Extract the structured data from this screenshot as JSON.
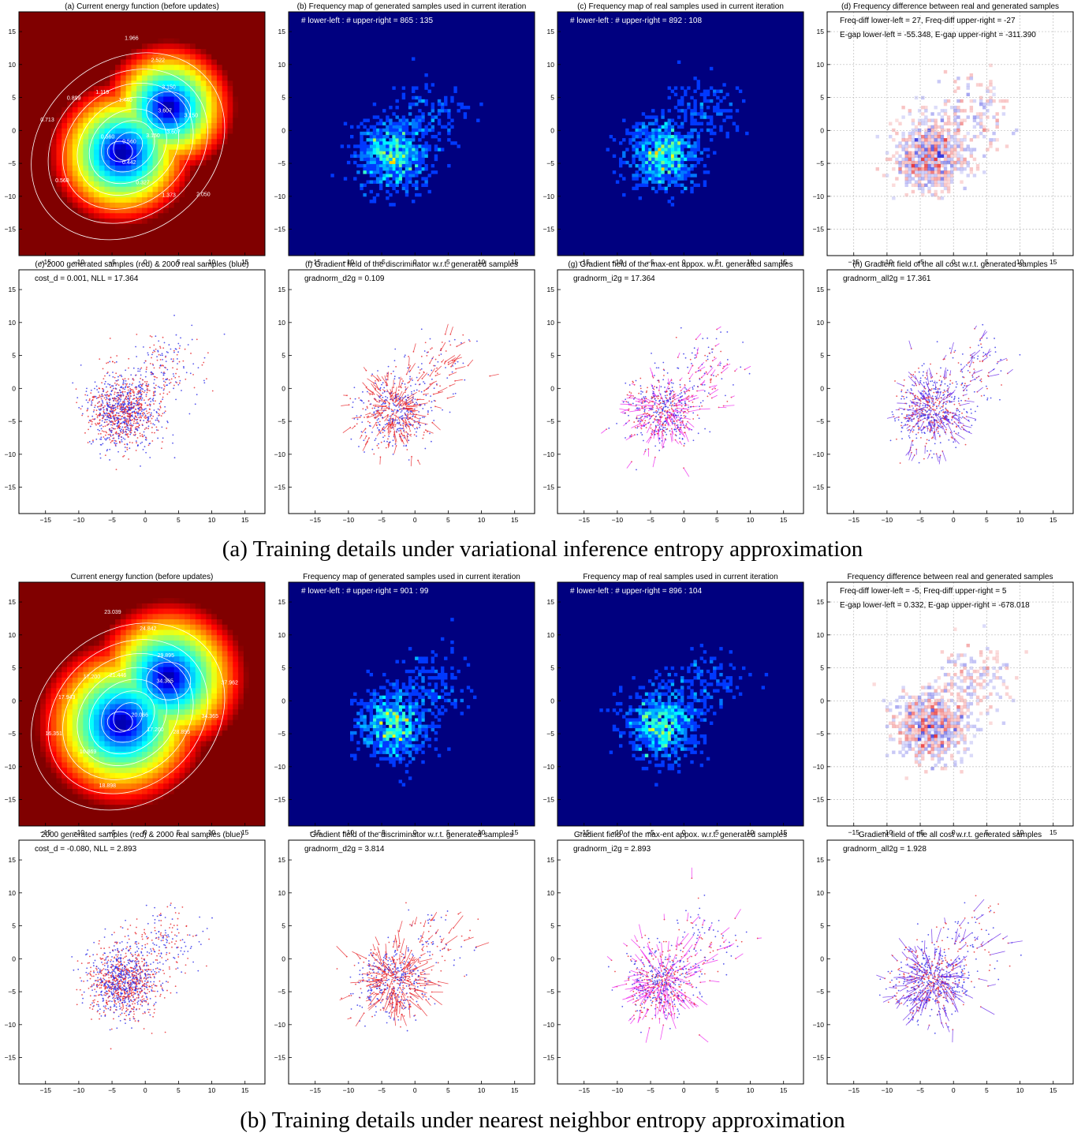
{
  "captions": {
    "a": "(a) Training details under variational inference entropy approximation",
    "b": "(b) Training details under nearest neighbor entropy approximation"
  },
  "colors": {
    "generated": "#e8262b",
    "real": "#2b2be8",
    "max_ent_arrows": "#ee22ee",
    "all_cost_arrows": "#6a2bea",
    "heatmap_bg": "#00007f",
    "contour": "#ffffff",
    "grid": "#bbbbbb"
  },
  "chart_data": [
    {
      "type": "heatmap",
      "group": "a",
      "title": "(a) Current energy function (before updates)",
      "xlim": [
        -19,
        18
      ],
      "ylim": [
        -19,
        18
      ],
      "xticks": [
        -15,
        -10,
        -5,
        0,
        5,
        10,
        15
      ],
      "yticks": [
        -15,
        -10,
        -5,
        0,
        5,
        10,
        15
      ],
      "contour_labels": [
        "3.607",
        "3.150",
        "2.522",
        "1.966",
        "1.440",
        "1.119",
        "0.899",
        "0.713",
        "0.560",
        "0.560",
        "0.560",
        "0.442",
        "0.327",
        "1.373",
        "2.050",
        "3.150",
        "3.607",
        "3.150"
      ]
    },
    {
      "type": "heatmap",
      "group": "a",
      "title": "(b) Frequency map of generated samples used in current iteration",
      "xlim": [
        -19,
        18
      ],
      "ylim": [
        -19,
        18
      ],
      "xticks": [
        -15,
        -10,
        -5,
        0,
        5,
        10,
        15
      ],
      "yticks": [
        -15,
        -10,
        -5,
        0,
        5,
        10,
        15
      ],
      "annotation": "# lower-left : # upper-right = 865 : 135",
      "counts": {
        "lower_left": 865,
        "upper_right": 135
      }
    },
    {
      "type": "heatmap",
      "group": "a",
      "title": "(c) Frequency map of real samples used in current iteration",
      "xlim": [
        -19,
        18
      ],
      "ylim": [
        -19,
        18
      ],
      "xticks": [
        -15,
        -10,
        -5,
        0,
        5,
        10,
        15
      ],
      "yticks": [
        -15,
        -10,
        -5,
        0,
        5,
        10,
        15
      ],
      "annotation": "# lower-left : # upper-right = 892 : 108",
      "counts": {
        "lower_left": 892,
        "upper_right": 108
      }
    },
    {
      "type": "heatmap",
      "group": "a",
      "title": "(d) Frequency difference between real and generated samples",
      "xlim": [
        -19,
        18
      ],
      "ylim": [
        -19,
        18
      ],
      "xticks": [
        -15,
        -10,
        -5,
        0,
        5,
        10,
        15
      ],
      "yticks": [
        -15,
        -10,
        -5,
        0,
        5,
        10,
        15
      ],
      "grid": true,
      "annotation_lines": [
        "Freq-diff lower-left = 27, Freq-diff upper-right = -27",
        "E-gap lower-left = -55.348, E-gap upper-right = -311.390"
      ]
    },
    {
      "type": "scatter",
      "group": "a",
      "title": "(e) 2000 generated samples (red) & 2000 real samples (blue)",
      "xlim": [
        -19,
        18
      ],
      "ylim": [
        -19,
        18
      ],
      "xticks": [
        -15,
        -10,
        -5,
        0,
        5,
        10,
        15
      ],
      "yticks": [
        -15,
        -10,
        -5,
        0,
        5,
        10,
        15
      ],
      "annotation": "cost_d = 0.001, NLL = 17.364",
      "series": [
        {
          "name": "generated",
          "count": 2000
        },
        {
          "name": "real",
          "count": 2000
        }
      ]
    },
    {
      "type": "scatter",
      "group": "a",
      "title": "(f) Gradient field of the discriminator w.r.t. generated samples",
      "xlim": [
        -19,
        18
      ],
      "ylim": [
        -19,
        18
      ],
      "xticks": [
        -15,
        -10,
        -5,
        0,
        5,
        10,
        15
      ],
      "yticks": [
        -15,
        -10,
        -5,
        0,
        5,
        10,
        15
      ],
      "annotation": "gradnorm_d2g = 0.109",
      "arrow_color": "generated"
    },
    {
      "type": "scatter",
      "group": "a",
      "title": "(g) Gradient field of the max-ent appox. w.r.t. generated samples",
      "xlim": [
        -19,
        18
      ],
      "ylim": [
        -19,
        18
      ],
      "xticks": [
        -15,
        -10,
        -5,
        0,
        5,
        10,
        15
      ],
      "yticks": [
        -15,
        -10,
        -5,
        0,
        5,
        10,
        15
      ],
      "annotation": "gradnorm_i2g = 17.364",
      "arrow_color": "max_ent_arrows"
    },
    {
      "type": "scatter",
      "group": "a",
      "title": "(h) Gradient field of the all cost w.r.t. generated samples",
      "xlim": [
        -19,
        18
      ],
      "ylim": [
        -19,
        18
      ],
      "xticks": [
        -15,
        -10,
        -5,
        0,
        5,
        10,
        15
      ],
      "yticks": [
        -15,
        -10,
        -5,
        0,
        5,
        10,
        15
      ],
      "annotation": "gradnorm_all2g = 17.361",
      "arrow_color": "all_cost_arrows"
    },
    {
      "type": "heatmap",
      "group": "b",
      "title": "Current energy function (before updates)",
      "xlim": [
        -19,
        18
      ],
      "ylim": [
        -19,
        18
      ],
      "xticks": [
        -15,
        -10,
        -5,
        0,
        5,
        10,
        15
      ],
      "yticks": [
        -15,
        -10,
        -5,
        0,
        5,
        10,
        15
      ],
      "contour_labels": [
        "34.365",
        "29.895",
        "24.842",
        "23.039",
        "21.446",
        "17.200",
        "17.943",
        "16.351",
        "16.869",
        "18.898",
        "20.066",
        "17.200",
        "28.895",
        "34.365",
        "37.962"
      ]
    },
    {
      "type": "heatmap",
      "group": "b",
      "title": "Frequency map of generated samples used in current iteration",
      "xlim": [
        -19,
        18
      ],
      "ylim": [
        -19,
        18
      ],
      "xticks": [
        -15,
        -10,
        -5,
        0,
        5,
        10,
        15
      ],
      "yticks": [
        -15,
        -10,
        -5,
        0,
        5,
        10,
        15
      ],
      "annotation": "# lower-left : # upper-right = 901 : 99",
      "counts": {
        "lower_left": 901,
        "upper_right": 99
      }
    },
    {
      "type": "heatmap",
      "group": "b",
      "title": "Frequency map of real samples used in current iteration",
      "xlim": [
        -19,
        18
      ],
      "ylim": [
        -19,
        18
      ],
      "xticks": [
        -15,
        -10,
        -5,
        0,
        5,
        10,
        15
      ],
      "yticks": [
        -15,
        -10,
        -5,
        0,
        5,
        10,
        15
      ],
      "annotation": "# lower-left : # upper-right = 896 : 104",
      "counts": {
        "lower_left": 896,
        "upper_right": 104
      }
    },
    {
      "type": "heatmap",
      "group": "b",
      "title": "Frequency difference between real and generated samples",
      "xlim": [
        -19,
        18
      ],
      "ylim": [
        -19,
        18
      ],
      "xticks": [
        -15,
        -10,
        -5,
        0,
        5,
        10,
        15
      ],
      "yticks": [
        -15,
        -10,
        -5,
        0,
        5,
        10,
        15
      ],
      "grid": true,
      "annotation_lines": [
        "Freq-diff lower-left = -5, Freq-diff upper-right = 5",
        "E-gap lower-left = 0.332, E-gap upper-right = -678.018"
      ]
    },
    {
      "type": "scatter",
      "group": "b",
      "title": "2000 generated samples (red) & 2000 real samples (blue)",
      "xlim": [
        -19,
        18
      ],
      "ylim": [
        -19,
        18
      ],
      "xticks": [
        -15,
        -10,
        -5,
        0,
        5,
        10,
        15
      ],
      "yticks": [
        -15,
        -10,
        -5,
        0,
        5,
        10,
        15
      ],
      "annotation": "cost_d = -0.080, NLL = 2.893",
      "series": [
        {
          "name": "generated",
          "count": 2000
        },
        {
          "name": "real",
          "count": 2000
        }
      ]
    },
    {
      "type": "scatter",
      "group": "b",
      "title": "Gradient field of the discriminator w.r.t. generated samples",
      "xlim": [
        -19,
        18
      ],
      "ylim": [
        -19,
        18
      ],
      "xticks": [
        -15,
        -10,
        -5,
        0,
        5,
        10,
        15
      ],
      "yticks": [
        -15,
        -10,
        -5,
        0,
        5,
        10,
        15
      ],
      "annotation": "gradnorm_d2g = 3.814",
      "arrow_color": "generated"
    },
    {
      "type": "scatter",
      "group": "b",
      "title": "Gradient field of the max-ent appox. w.r.t. generated samples",
      "xlim": [
        -19,
        18
      ],
      "ylim": [
        -19,
        18
      ],
      "xticks": [
        -15,
        -10,
        -5,
        0,
        5,
        10,
        15
      ],
      "yticks": [
        -15,
        -10,
        -5,
        0,
        5,
        10,
        15
      ],
      "annotation": "gradnorm_i2g = 2.893",
      "arrow_color": "max_ent_arrows"
    },
    {
      "type": "scatter",
      "group": "b",
      "title": "Gradient field of the all cost w.r.t. generated samples",
      "xlim": [
        -19,
        18
      ],
      "ylim": [
        -19,
        18
      ],
      "xticks": [
        -15,
        -10,
        -5,
        0,
        5,
        10,
        15
      ],
      "yticks": [
        -15,
        -10,
        -5,
        0,
        5,
        10,
        15
      ],
      "annotation": "gradnorm_all2g = 1.928",
      "arrow_color": "all_cost_arrows"
    }
  ]
}
